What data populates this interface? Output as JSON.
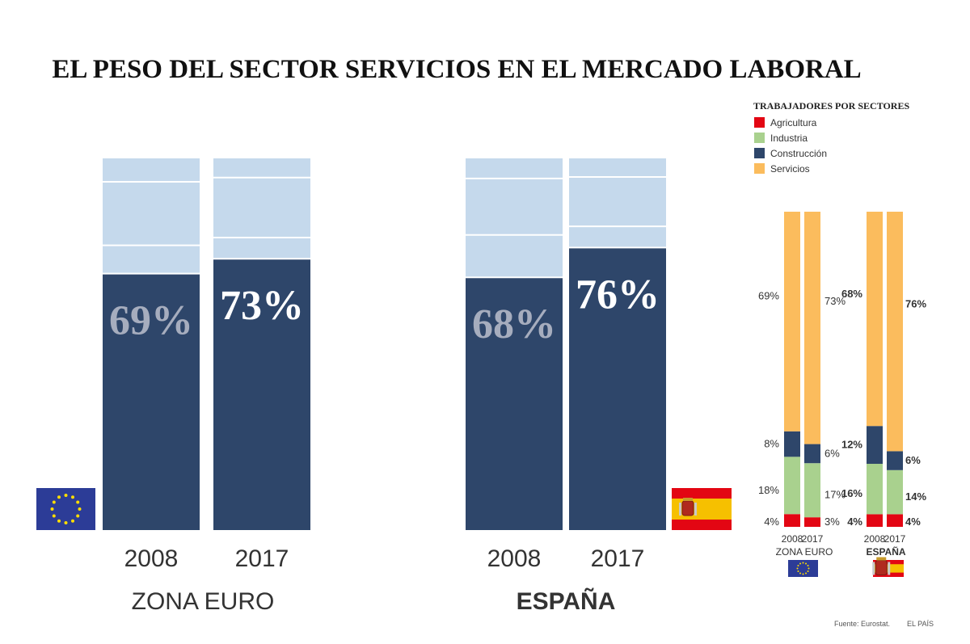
{
  "title": "EL PESO DEL SECTOR SERVICIOS EN EL MERCADO LABORAL",
  "legend": {
    "title": "TRABAJADORES POR SECTORES",
    "items": [
      {
        "label": "Agricultura",
        "color": "#e30613"
      },
      {
        "label": "Industria",
        "color": "#a9d18e"
      },
      {
        "label": "Construcción",
        "color": "#2e466a"
      },
      {
        "label": "Servicios",
        "color": "#fbbc5d"
      }
    ]
  },
  "colors": {
    "big_services": "#2e466a",
    "big_other": "#c5d9ec",
    "big_label_2008": "#a6adbe",
    "big_label_2017": "#ffffff",
    "eu_flag": "#2c3c97",
    "eu_star": "#ffdd00",
    "es_red": "#e30613",
    "es_yellow": "#f6c000"
  },
  "chart_data": [
    {
      "type": "bar",
      "stacked": true,
      "region": "ZONA EURO",
      "categories": [
        "2008",
        "2017"
      ],
      "services_share": [
        69,
        73
      ],
      "labels": [
        "69%",
        "73%"
      ]
    },
    {
      "type": "bar",
      "stacked": true,
      "region": "ESPAÑA",
      "categories": [
        "2008",
        "2017"
      ],
      "services_share": [
        68,
        76
      ],
      "labels": [
        "68%",
        "76%"
      ]
    },
    {
      "type": "bar",
      "stacked": true,
      "title": "TRABAJADORES POR SECTORES",
      "groups": [
        {
          "region": "ZONA EURO",
          "categories": [
            "2008",
            "2017"
          ],
          "series": [
            {
              "name": "Agricultura",
              "values": [
                4,
                3
              ],
              "labels": [
                "4%",
                "3%"
              ]
            },
            {
              "name": "Industria",
              "values": [
                18,
                17
              ],
              "labels": [
                "18%",
                "17%"
              ]
            },
            {
              "name": "Construcción",
              "values": [
                8,
                6
              ],
              "labels": [
                "8%",
                "6%"
              ]
            },
            {
              "name": "Servicios",
              "values": [
                69,
                73
              ],
              "labels": [
                "69%",
                "73%"
              ]
            }
          ]
        },
        {
          "region": "ESPAÑA",
          "categories": [
            "2008",
            "2017"
          ],
          "series": [
            {
              "name": "Agricultura",
              "values": [
                4,
                4
              ],
              "labels": [
                "4%",
                "4%"
              ]
            },
            {
              "name": "Industria",
              "values": [
                16,
                14
              ],
              "labels": [
                "16%",
                "14%"
              ]
            },
            {
              "name": "Construcción",
              "values": [
                12,
                6
              ],
              "labels": [
                "12%",
                "6%"
              ]
            },
            {
              "name": "Servicios",
              "values": [
                68,
                76
              ],
              "labels": [
                "68%",
                "76%"
              ]
            }
          ]
        }
      ]
    }
  ],
  "footer": {
    "source": "Fuente: Eurostat.",
    "brand": "EL PAÍS"
  }
}
